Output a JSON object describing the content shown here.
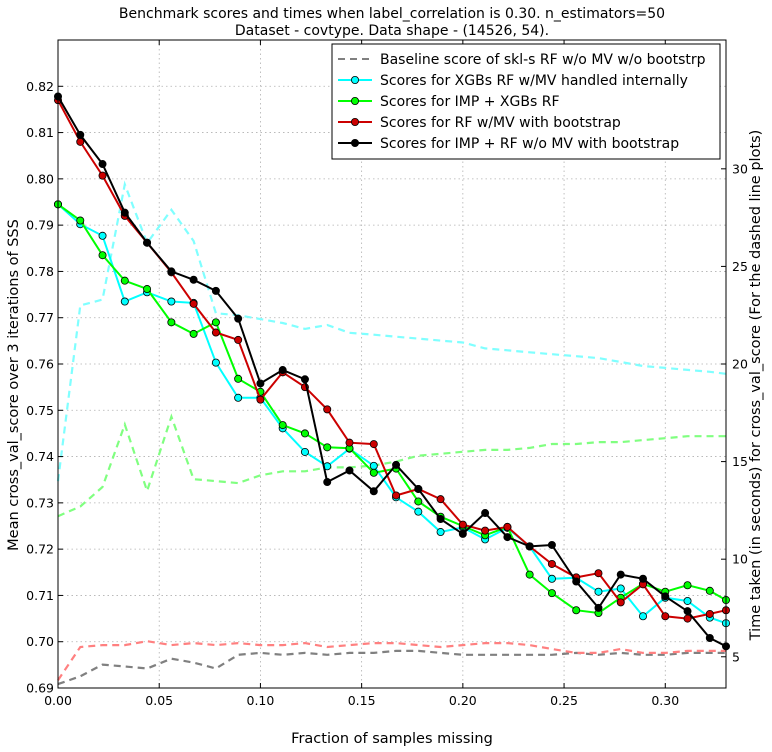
{
  "chart_data": {
    "type": "line",
    "title": "Benchmark scores and times when label_correlation is 0.30. n_estimators=50",
    "subtitle": "Dataset - covtype. Data shape - (14526, 54).",
    "xlabel": "Fraction of samples missing",
    "ylabel": "Mean cross_val_score over 3 iterations of SSS",
    "y2label": "Time taken (in seconds) for cross_val_score (For the dashed line plots)",
    "xlim": [
      0.0,
      0.33
    ],
    "ylim": [
      0.69,
      0.83
    ],
    "y2lim": [
      3.4,
      36.6
    ],
    "grid": true,
    "legend_position": "top-right",
    "x_ticks": [
      0.0,
      0.05,
      0.1,
      0.15,
      0.2,
      0.25,
      0.3
    ],
    "x_tick_labels": [
      "0.00",
      "0.05",
      "0.10",
      "0.15",
      "0.20",
      "0.25",
      "0.30"
    ],
    "y_ticks": [
      0.69,
      0.7,
      0.71,
      0.72,
      0.73,
      0.74,
      0.75,
      0.76,
      0.77,
      0.78,
      0.79,
      0.8,
      0.81,
      0.82
    ],
    "y_tick_labels": [
      "0.69",
      "0.70",
      "0.71",
      "0.72",
      "0.73",
      "0.74",
      "0.75",
      "0.76",
      "0.77",
      "0.78",
      "0.79",
      "0.80",
      "0.81",
      "0.82"
    ],
    "y2_ticks": [
      5,
      10,
      15,
      20,
      25,
      30
    ],
    "y2_tick_labels": [
      "5",
      "10",
      "15",
      "20",
      "25",
      "30"
    ],
    "x": [
      0.0,
      0.011,
      0.022,
      0.033,
      0.044,
      0.056,
      0.067,
      0.078,
      0.089,
      0.1,
      0.111,
      0.122,
      0.133,
      0.144,
      0.156,
      0.167,
      0.178,
      0.189,
      0.2,
      0.211,
      0.222,
      0.233,
      0.244,
      0.256,
      0.267,
      0.278,
      0.289,
      0.3,
      0.311,
      0.322,
      0.33
    ],
    "series": [
      {
        "name": "Baseline score of skl-s RF w/o MV w/o bootstrp",
        "axis": "right",
        "style": "dashed",
        "marker": false,
        "color": "#808080",
        "in_legend": true,
        "values": [
          3.6,
          4.0,
          4.6,
          4.5,
          4.4,
          4.9,
          4.7,
          4.4,
          5.1,
          5.2,
          5.1,
          5.2,
          5.1,
          5.2,
          5.2,
          5.3,
          5.3,
          5.2,
          5.1,
          5.1,
          5.1,
          5.1,
          5.1,
          5.2,
          5.1,
          5.2,
          5.1,
          5.1,
          5.2,
          5.2,
          5.2
        ]
      },
      {
        "name": "",
        "axis": "right",
        "style": "dashed",
        "marker": false,
        "color": "#80ffff",
        "in_legend": false,
        "values": [
          14.0,
          23.0,
          23.3,
          29.2,
          26.2,
          27.9,
          26.3,
          22.6,
          22.5,
          22.3,
          22.1,
          21.8,
          22.0,
          21.6,
          21.5,
          21.4,
          21.3,
          21.2,
          21.1,
          20.8,
          20.7,
          20.6,
          20.5,
          20.4,
          20.3,
          20.1,
          19.9,
          19.8,
          19.7,
          19.6,
          19.5
        ]
      },
      {
        "name": "",
        "axis": "right",
        "style": "dashed",
        "marker": false,
        "color": "#80ff80",
        "in_legend": false,
        "values": [
          12.2,
          12.7,
          13.7,
          16.9,
          13.5,
          17.3,
          14.1,
          14.0,
          13.9,
          14.3,
          14.5,
          14.5,
          14.7,
          14.7,
          14.8,
          15.0,
          15.3,
          15.4,
          15.5,
          15.6,
          15.6,
          15.7,
          15.9,
          15.9,
          16.0,
          16.0,
          16.1,
          16.2,
          16.3,
          16.3,
          16.3
        ]
      },
      {
        "name": "",
        "axis": "right",
        "style": "dashed",
        "marker": false,
        "color": "#ff8080",
        "in_legend": false,
        "values": [
          3.8,
          5.5,
          5.6,
          5.6,
          5.8,
          5.6,
          5.7,
          5.6,
          5.7,
          5.6,
          5.6,
          5.7,
          5.5,
          5.6,
          5.7,
          5.7,
          5.6,
          5.5,
          5.6,
          5.7,
          5.7,
          5.6,
          5.4,
          5.2,
          5.2,
          5.4,
          5.2,
          5.2,
          5.3,
          5.3,
          5.3
        ]
      },
      {
        "name": "Scores for XGBs RF w/MV handled internally",
        "axis": "left",
        "style": "solid",
        "marker": true,
        "color": "#00ffff",
        "in_legend": true,
        "values": [
          0.7945,
          0.7902,
          0.7877,
          0.7735,
          0.7755,
          0.7735,
          0.7732,
          0.7603,
          0.7527,
          0.7527,
          0.7461,
          0.741,
          0.7379,
          0.7417,
          0.738,
          0.7312,
          0.7281,
          0.7237,
          0.7247,
          0.7221,
          0.7246,
          0.7206,
          0.7136,
          0.7138,
          0.7108,
          0.7115,
          0.7055,
          0.7095,
          0.7088,
          0.7052,
          0.704
        ]
      },
      {
        "name": "Scores for IMP + XGBs RF",
        "axis": "left",
        "style": "solid",
        "marker": true,
        "color": "#00ff00",
        "in_legend": true,
        "values": [
          0.7945,
          0.791,
          0.7835,
          0.778,
          0.7762,
          0.769,
          0.7665,
          0.769,
          0.7568,
          0.754,
          0.7468,
          0.745,
          0.742,
          0.7418,
          0.7365,
          0.7374,
          0.7303,
          0.727,
          0.725,
          0.723,
          0.7248,
          0.7145,
          0.7105,
          0.7068,
          0.7062,
          0.7095,
          0.7125,
          0.7108,
          0.7122,
          0.711,
          0.709
        ]
      },
      {
        "name": "Scores for RF w/MV with bootstrap",
        "axis": "left",
        "style": "solid",
        "marker": true,
        "color": "#cc0000",
        "in_legend": true,
        "values": [
          0.817,
          0.808,
          0.8007,
          0.792,
          0.7862,
          0.7798,
          0.773,
          0.7668,
          0.7652,
          0.7523,
          0.7582,
          0.755,
          0.7502,
          0.743,
          0.7427,
          0.7316,
          0.733,
          0.7308,
          0.7253,
          0.724,
          0.7248,
          0.7206,
          0.7168,
          0.7139,
          0.7148,
          0.7085,
          0.7124,
          0.7055,
          0.705,
          0.706,
          0.7068
        ]
      },
      {
        "name": "Scores for IMP + RF w/o MV with bootstrap",
        "axis": "left",
        "style": "solid",
        "marker": true,
        "color": "#000000",
        "in_legend": true,
        "values": [
          0.8178,
          0.8095,
          0.8032,
          0.7927,
          0.7862,
          0.78,
          0.7782,
          0.7758,
          0.7698,
          0.7558,
          0.7587,
          0.7567,
          0.7345,
          0.737,
          0.7325,
          0.7382,
          0.733,
          0.7265,
          0.7233,
          0.7278,
          0.7226,
          0.7206,
          0.7209,
          0.713,
          0.7073,
          0.7145,
          0.7136,
          0.7098,
          0.7066,
          0.7008,
          0.699
        ]
      }
    ]
  }
}
